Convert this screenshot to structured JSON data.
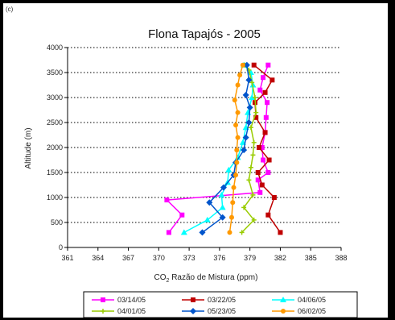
{
  "panel_label": "(c)",
  "chart_data": {
    "type": "line",
    "title": "Flona Tapajós - 2005",
    "xlabel_parts": [
      "CO",
      "2",
      " Razão de Mistura (ppm)"
    ],
    "ylabel": "Altitude (m)",
    "xlim": [
      361,
      388
    ],
    "ylim": [
      0,
      4000
    ],
    "x_ticks": [
      361,
      364,
      367,
      370,
      373,
      376,
      379,
      382,
      385,
      388
    ],
    "y_ticks": [
      0,
      500,
      1000,
      1500,
      2000,
      2500,
      3000,
      3500,
      4000
    ],
    "grid": "horizontal dotted",
    "legend_position": "bottom",
    "series": [
      {
        "name": "03/14/05",
        "color": "#FF00FF",
        "marker": "square",
        "points": [
          [
            371.0,
            300
          ],
          [
            372.3,
            650
          ],
          [
            370.8,
            950
          ],
          [
            380.0,
            1100
          ],
          [
            379.8,
            1350
          ],
          [
            380.8,
            1500
          ],
          [
            380.3,
            1750
          ],
          [
            380.2,
            2000
          ],
          [
            380.5,
            2300
          ],
          [
            380.6,
            2600
          ],
          [
            380.7,
            2900
          ],
          [
            380.0,
            3150
          ],
          [
            380.3,
            3400
          ],
          [
            380.8,
            3650
          ]
        ]
      },
      {
        "name": "03/22/05",
        "color": "#C00000",
        "marker": "square",
        "points": [
          [
            382.0,
            300
          ],
          [
            380.8,
            650
          ],
          [
            381.4,
            1000
          ],
          [
            380.2,
            1250
          ],
          [
            379.8,
            1500
          ],
          [
            380.9,
            1750
          ],
          [
            379.9,
            2000
          ],
          [
            380.5,
            2300
          ],
          [
            379.6,
            2600
          ],
          [
            379.5,
            2900
          ],
          [
            380.5,
            3100
          ],
          [
            381.2,
            3350
          ],
          [
            379.4,
            3650
          ]
        ]
      },
      {
        "name": "04/06/05",
        "color": "#00FFFF",
        "marker": "triangle",
        "points": [
          [
            372.5,
            300
          ],
          [
            374.8,
            550
          ],
          [
            376.3,
            800
          ],
          [
            376.2,
            1050
          ],
          [
            376.8,
            1300
          ],
          [
            376.9,
            1550
          ],
          [
            377.8,
            1800
          ],
          [
            378.3,
            2100
          ],
          [
            378.6,
            2400
          ],
          [
            378.8,
            2700
          ],
          [
            379.2,
            3000
          ],
          [
            379.3,
            3250
          ],
          [
            379.1,
            3500
          ],
          [
            378.4,
            3650
          ]
        ]
      },
      {
        "name": "04/01/05",
        "color": "#99CC00",
        "marker": "cross",
        "points": [
          [
            378.2,
            300
          ],
          [
            379.4,
            550
          ],
          [
            378.4,
            800
          ],
          [
            379.3,
            1050
          ],
          [
            378.9,
            1350
          ],
          [
            379.1,
            1600
          ],
          [
            379.3,
            1850
          ],
          [
            379.4,
            2100
          ],
          [
            379.1,
            2400
          ],
          [
            379.6,
            2700
          ],
          [
            379.5,
            3000
          ],
          [
            379.2,
            3300
          ],
          [
            378.9,
            3550
          ],
          [
            378.5,
            3650
          ]
        ]
      },
      {
        "name": "05/23/05",
        "color": "#0055CC",
        "marker": "diamond",
        "points": [
          [
            374.3,
            300
          ],
          [
            376.3,
            600
          ],
          [
            375.0,
            900
          ],
          [
            376.4,
            1200
          ],
          [
            377.4,
            1450
          ],
          [
            377.6,
            1700
          ],
          [
            378.4,
            1950
          ],
          [
            378.6,
            2200
          ],
          [
            378.9,
            2500
          ],
          [
            379.0,
            2800
          ],
          [
            378.6,
            3050
          ],
          [
            378.9,
            3350
          ],
          [
            378.7,
            3650
          ]
        ]
      },
      {
        "name": "06/02/05",
        "color": "#FF9900",
        "marker": "circle",
        "points": [
          [
            377.0,
            300
          ],
          [
            377.2,
            600
          ],
          [
            377.3,
            900
          ],
          [
            377.4,
            1200
          ],
          [
            377.6,
            1450
          ],
          [
            377.7,
            1700
          ],
          [
            377.7,
            1950
          ],
          [
            377.8,
            2200
          ],
          [
            377.6,
            2450
          ],
          [
            377.8,
            2700
          ],
          [
            377.5,
            2950
          ],
          [
            377.8,
            3250
          ],
          [
            378.0,
            3450
          ],
          [
            378.3,
            3650
          ]
        ]
      }
    ]
  }
}
